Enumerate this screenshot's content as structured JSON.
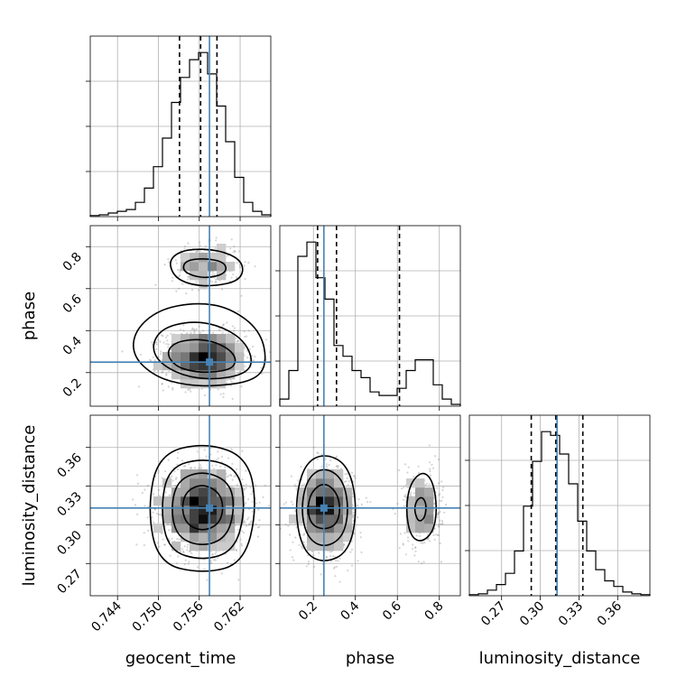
{
  "chart_data": {
    "type": "corner",
    "parameters": [
      "geocent_time",
      "phase",
      "luminosity_distance"
    ],
    "truths": {
      "geocent_time": 0.7575,
      "phase": 0.25,
      "luminosity_distance": 0.313
    },
    "ranges": {
      "geocent_time": [
        0.74,
        0.7665
      ],
      "phase": [
        0.04,
        0.9
      ],
      "luminosity_distance": [
        0.245,
        0.385
      ]
    },
    "ticks": {
      "geocent_time": [
        "0.744",
        "0.750",
        "0.756",
        "0.762"
      ],
      "phase": [
        "0.2",
        "0.4",
        "0.6",
        "0.8"
      ],
      "luminosity_distance": [
        "0.27",
        "0.30",
        "0.33",
        "0.36"
      ]
    },
    "quantiles": {
      "geocent_time": [
        0.7531,
        0.7562,
        0.7586
      ],
      "phase": [
        0.22,
        0.31,
        0.61
      ],
      "luminosity_distance": [
        0.293,
        0.312,
        0.333
      ]
    },
    "histograms": {
      "geocent_time": [
        0.3,
        0.5,
        1,
        1.5,
        2,
        4,
        8,
        14,
        22,
        32,
        39,
        44,
        46,
        40,
        31,
        21,
        11,
        4,
        1.5,
        0.5
      ],
      "phase": [
        2,
        10,
        42,
        46,
        36,
        30,
        17,
        14,
        10,
        8,
        4,
        3,
        3,
        5,
        10,
        13,
        13,
        6,
        2,
        0.5
      ],
      "luminosity_distance": [
        0.3,
        0.5,
        1.5,
        3,
        6,
        12,
        24,
        36,
        44,
        43,
        38,
        30,
        20,
        12,
        7,
        4,
        2.5,
        1,
        0.5,
        0.3
      ]
    }
  }
}
